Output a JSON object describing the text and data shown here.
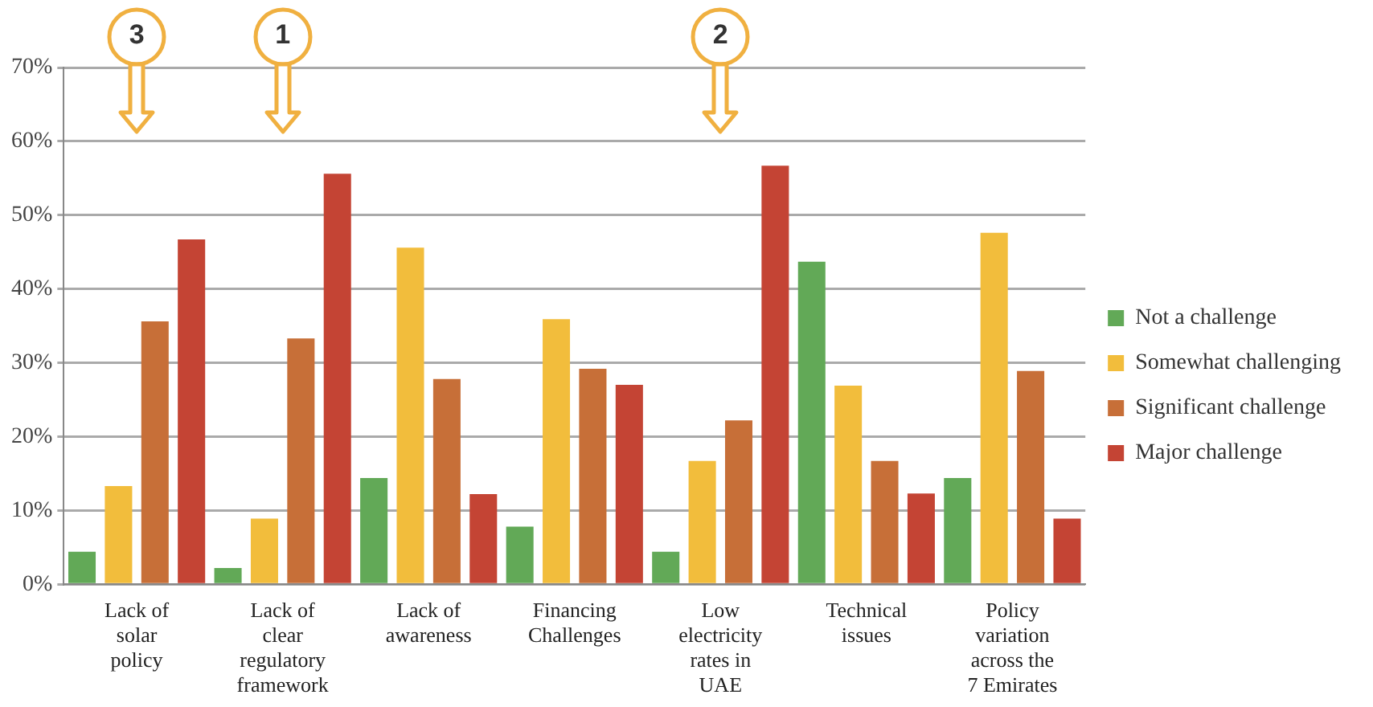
{
  "chart_data": {
    "type": "bar",
    "categories": [
      "Lack of solar policy",
      "Lack of clear regulatory framework",
      "Lack of awareness",
      "Financing Challenges",
      "Low electricity rates in UAE",
      "Technical issues",
      "Policy variation across the 7 Emirates"
    ],
    "series": [
      {
        "name": "Not a challenge",
        "color": "#62a957",
        "values": [
          4.4,
          2.2,
          14.4,
          7.8,
          4.4,
          43.7,
          14.4
        ]
      },
      {
        "name": "Somewhat challenging",
        "color": "#f2bd3c",
        "values": [
          13.3,
          8.9,
          45.6,
          35.9,
          16.7,
          26.9,
          47.6
        ]
      },
      {
        "name": "Significant challenge",
        "color": "#c76f38",
        "values": [
          35.6,
          33.3,
          27.8,
          29.2,
          22.2,
          16.7,
          28.9
        ]
      },
      {
        "name": "Major challenge",
        "color": "#c44434",
        "values": [
          46.7,
          55.6,
          12.2,
          27.0,
          56.7,
          12.3,
          8.9
        ]
      }
    ],
    "ylim": [
      0,
      70
    ],
    "yticks": [
      {
        "value": 0,
        "label": "0%"
      },
      {
        "value": 10,
        "label": "10%"
      },
      {
        "value": 20,
        "label": "20%"
      },
      {
        "value": 30,
        "label": "30%"
      },
      {
        "value": 40,
        "label": "40%"
      },
      {
        "value": 50,
        "label": "50%"
      },
      {
        "value": 60,
        "label": "60%"
      },
      {
        "value": 70,
        "label": "70%"
      }
    ],
    "grid": "y",
    "legend": "right",
    "annotations": [
      {
        "text": "3",
        "x": "Lack of solar policy"
      },
      {
        "text": "1",
        "x": "Lack of clear regulatory framework"
      },
      {
        "text": "2",
        "x": "Low electricity rates in UAE"
      }
    ]
  }
}
